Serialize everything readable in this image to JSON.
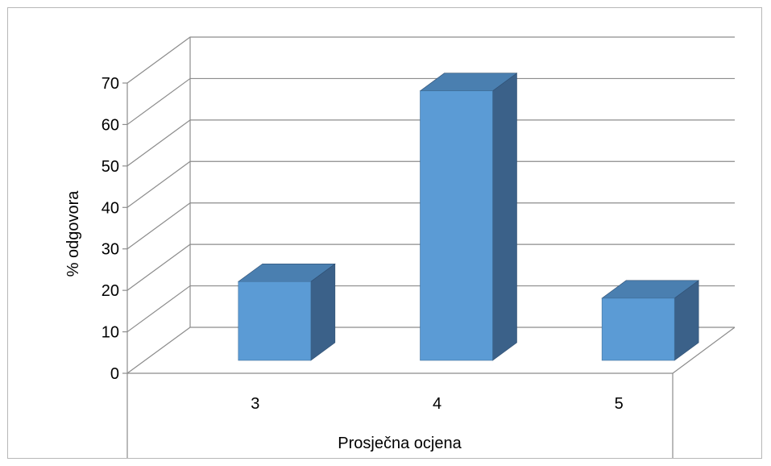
{
  "chart_data": {
    "type": "bar",
    "three_d": true,
    "categories": [
      "3",
      "4",
      "5"
    ],
    "series": [
      {
        "values": [
          19,
          65,
          15
        ]
      }
    ],
    "title": "",
    "xlabel": "Prosječna ocjena",
    "ylabel": "% odgovora",
    "ylim": [
      0,
      70
    ],
    "yticks": [
      "0",
      "10",
      "20",
      "30",
      "40",
      "50",
      "60",
      "70"
    ],
    "grid": true,
    "legend": "none",
    "colors": {
      "bar_front": "#5b9bd5",
      "bar_top": "#4a7fb0",
      "bar_side": "#3b6189",
      "gridline": "#8c8c8c"
    }
  }
}
